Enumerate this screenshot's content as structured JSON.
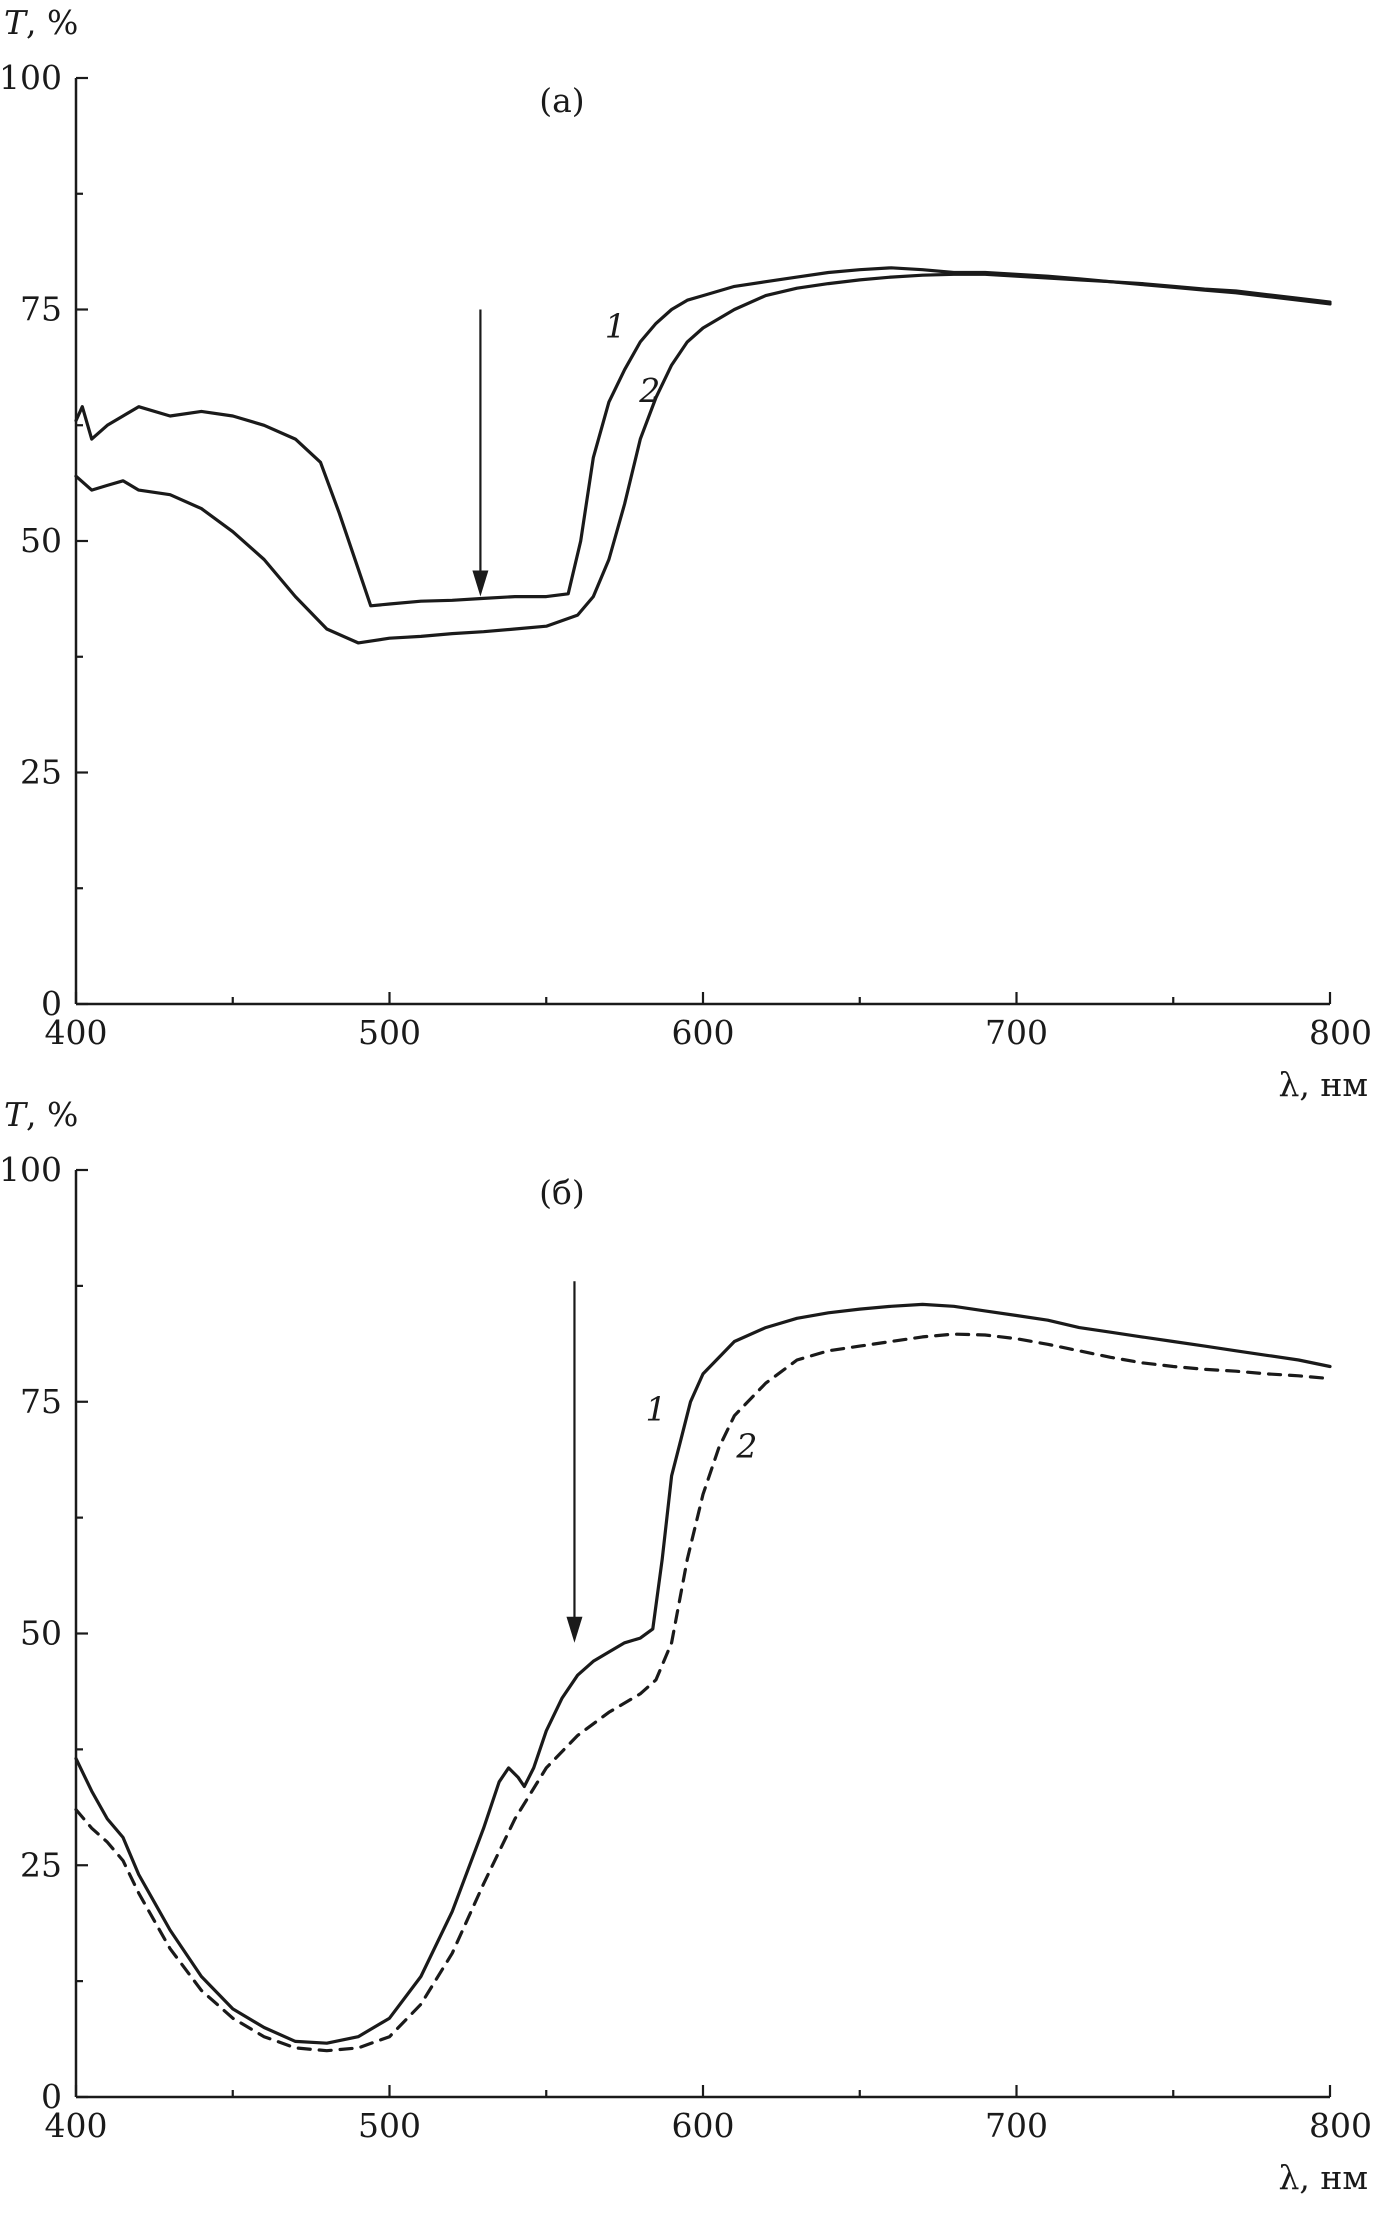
{
  "chart_data": [
    {
      "type": "line",
      "panel_label": "(а)",
      "y_axis_title": "T",
      "y_axis_unit": ", %",
      "x_axis_title": "λ, нм",
      "xlim": [
        400,
        800
      ],
      "ylim": [
        0,
        100
      ],
      "x_ticks": [
        400,
        500,
        600,
        700,
        800
      ],
      "y_ticks": [
        0,
        25,
        50,
        75,
        100
      ],
      "arrow": {
        "x": 529,
        "y_from": 75,
        "y_to": 44
      },
      "series": [
        {
          "name": "1",
          "style": "solid",
          "label_at": {
            "x": 572,
            "y": 72
          },
          "points": [
            [
              400,
              63
            ],
            [
              402,
              64.5
            ],
            [
              405,
              61
            ],
            [
              410,
              62.5
            ],
            [
              415,
              63.5
            ],
            [
              420,
              64.5
            ],
            [
              430,
              63.5
            ],
            [
              440,
              64
            ],
            [
              450,
              63.5
            ],
            [
              460,
              62.5
            ],
            [
              470,
              61
            ],
            [
              478,
              58.5
            ],
            [
              484,
              53
            ],
            [
              490,
              47
            ],
            [
              494,
              43
            ],
            [
              500,
              43.2
            ],
            [
              510,
              43.5
            ],
            [
              520,
              43.6
            ],
            [
              530,
              43.8
            ],
            [
              540,
              44
            ],
            [
              550,
              44
            ],
            [
              557,
              44.3
            ],
            [
              561,
              50
            ],
            [
              565,
              59
            ],
            [
              570,
              65
            ],
            [
              575,
              68.5
            ],
            [
              580,
              71.5
            ],
            [
              585,
              73.5
            ],
            [
              590,
              75
            ],
            [
              595,
              76
            ],
            [
              600,
              76.5
            ],
            [
              610,
              77.5
            ],
            [
              620,
              78
            ],
            [
              630,
              78.5
            ],
            [
              640,
              79
            ],
            [
              650,
              79.3
            ],
            [
              660,
              79.5
            ],
            [
              670,
              79.3
            ],
            [
              680,
              79
            ],
            [
              690,
              79
            ],
            [
              700,
              78.8
            ],
            [
              710,
              78.6
            ],
            [
              720,
              78.3
            ],
            [
              730,
              78
            ],
            [
              740,
              77.8
            ],
            [
              750,
              77.5
            ],
            [
              760,
              77.2
            ],
            [
              770,
              77
            ],
            [
              780,
              76.6
            ],
            [
              790,
              76.2
            ],
            [
              800,
              75.8
            ]
          ]
        },
        {
          "name": "2",
          "style": "solid",
          "label_at": {
            "x": 583,
            "y": 65
          },
          "points": [
            [
              400,
              57
            ],
            [
              405,
              55.5
            ],
            [
              410,
              56
            ],
            [
              415,
              56.5
            ],
            [
              420,
              55.5
            ],
            [
              430,
              55
            ],
            [
              440,
              53.5
            ],
            [
              450,
              51
            ],
            [
              460,
              48
            ],
            [
              470,
              44
            ],
            [
              480,
              40.5
            ],
            [
              490,
              39
            ],
            [
              500,
              39.5
            ],
            [
              510,
              39.7
            ],
            [
              520,
              40
            ],
            [
              530,
              40.2
            ],
            [
              540,
              40.5
            ],
            [
              550,
              40.8
            ],
            [
              560,
              42
            ],
            [
              565,
              44
            ],
            [
              570,
              48
            ],
            [
              575,
              54
            ],
            [
              580,
              61
            ],
            [
              585,
              65.5
            ],
            [
              590,
              69
            ],
            [
              595,
              71.5
            ],
            [
              600,
              73
            ],
            [
              610,
              75
            ],
            [
              620,
              76.5
            ],
            [
              630,
              77.3
            ],
            [
              640,
              77.8
            ],
            [
              650,
              78.2
            ],
            [
              660,
              78.5
            ],
            [
              670,
              78.7
            ],
            [
              680,
              78.8
            ],
            [
              690,
              78.8
            ],
            [
              700,
              78.6
            ],
            [
              710,
              78.4
            ],
            [
              720,
              78.2
            ],
            [
              730,
              78
            ],
            [
              740,
              77.7
            ],
            [
              750,
              77.4
            ],
            [
              760,
              77.1
            ],
            [
              770,
              76.8
            ],
            [
              780,
              76.4
            ],
            [
              790,
              76
            ],
            [
              800,
              75.6
            ]
          ]
        }
      ]
    },
    {
      "type": "line",
      "panel_label": "(б)",
      "y_axis_title": "T",
      "y_axis_unit": ", %",
      "x_axis_title": "λ, нм",
      "xlim": [
        400,
        800
      ],
      "ylim": [
        0,
        100
      ],
      "x_ticks": [
        400,
        500,
        600,
        700,
        800
      ],
      "y_ticks": [
        0,
        25,
        50,
        75,
        100
      ],
      "arrow": {
        "x": 559,
        "y_from": 88,
        "y_to": 49
      },
      "series": [
        {
          "name": "1",
          "style": "solid",
          "label_at": {
            "x": 585,
            "y": 73
          },
          "points": [
            [
              400,
              36.5
            ],
            [
              405,
              33
            ],
            [
              410,
              30
            ],
            [
              415,
              28
            ],
            [
              420,
              24
            ],
            [
              430,
              18
            ],
            [
              440,
              13
            ],
            [
              450,
              9.5
            ],
            [
              460,
              7.5
            ],
            [
              470,
              6
            ],
            [
              480,
              5.8
            ],
            [
              490,
              6.5
            ],
            [
              500,
              8.5
            ],
            [
              510,
              13
            ],
            [
              520,
              20
            ],
            [
              530,
              29
            ],
            [
              535,
              34
            ],
            [
              538,
              35.5
            ],
            [
              541,
              34.5
            ],
            [
              543,
              33.5
            ],
            [
              546,
              35.5
            ],
            [
              550,
              39.5
            ],
            [
              555,
              43
            ],
            [
              560,
              45.5
            ],
            [
              565,
              47
            ],
            [
              570,
              48
            ],
            [
              575,
              49
            ],
            [
              580,
              49.5
            ],
            [
              584,
              50.5
            ],
            [
              587,
              58
            ],
            [
              590,
              67
            ],
            [
              593,
              71
            ],
            [
              596,
              75
            ],
            [
              600,
              78
            ],
            [
              610,
              81.5
            ],
            [
              620,
              83
            ],
            [
              630,
              84
            ],
            [
              640,
              84.6
            ],
            [
              650,
              85
            ],
            [
              660,
              85.3
            ],
            [
              670,
              85.5
            ],
            [
              680,
              85.3
            ],
            [
              690,
              84.8
            ],
            [
              700,
              84.3
            ],
            [
              710,
              83.8
            ],
            [
              720,
              83
            ],
            [
              730,
              82.5
            ],
            [
              740,
              82
            ],
            [
              750,
              81.5
            ],
            [
              760,
              81
            ],
            [
              770,
              80.5
            ],
            [
              780,
              80
            ],
            [
              790,
              79.5
            ],
            [
              800,
              78.8
            ]
          ]
        },
        {
          "name": "2",
          "style": "dashed",
          "label_at": {
            "x": 614,
            "y": 69
          },
          "points": [
            [
              400,
              31
            ],
            [
              405,
              29
            ],
            [
              410,
              27.5
            ],
            [
              415,
              25.5
            ],
            [
              420,
              22
            ],
            [
              430,
              16
            ],
            [
              440,
              11.5
            ],
            [
              450,
              8.5
            ],
            [
              460,
              6.5
            ],
            [
              470,
              5.3
            ],
            [
              480,
              5
            ],
            [
              490,
              5.3
            ],
            [
              500,
              6.5
            ],
            [
              510,
              10
            ],
            [
              520,
              15.5
            ],
            [
              530,
              23
            ],
            [
              540,
              30
            ],
            [
              550,
              35.5
            ],
            [
              560,
              39
            ],
            [
              570,
              41.5
            ],
            [
              580,
              43.5
            ],
            [
              585,
              45
            ],
            [
              590,
              49
            ],
            [
              595,
              58
            ],
            [
              600,
              65
            ],
            [
              605,
              70
            ],
            [
              610,
              73.5
            ],
            [
              620,
              77
            ],
            [
              630,
              79.5
            ],
            [
              640,
              80.5
            ],
            [
              650,
              81
            ],
            [
              660,
              81.5
            ],
            [
              670,
              82
            ],
            [
              680,
              82.3
            ],
            [
              690,
              82.2
            ],
            [
              700,
              81.8
            ],
            [
              710,
              81.2
            ],
            [
              720,
              80.5
            ],
            [
              730,
              79.8
            ],
            [
              740,
              79.2
            ],
            [
              750,
              78.8
            ],
            [
              760,
              78.5
            ],
            [
              770,
              78.3
            ],
            [
              780,
              78
            ],
            [
              790,
              77.8
            ],
            [
              800,
              77.5
            ]
          ]
        }
      ]
    }
  ]
}
